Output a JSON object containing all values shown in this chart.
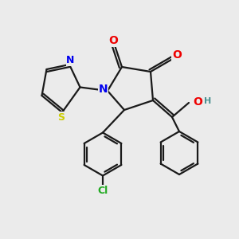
{
  "bg_color": "#ebebeb",
  "bond_color": "#1a1a1a",
  "atom_colors": {
    "N": "#0000ee",
    "O": "#ee0000",
    "S": "#cccc00",
    "Cl": "#22aa22",
    "H": "#4a9090",
    "C": "#1a1a1a"
  },
  "lw": 1.6,
  "font_size": 9,
  "ring_lw": 1.5
}
